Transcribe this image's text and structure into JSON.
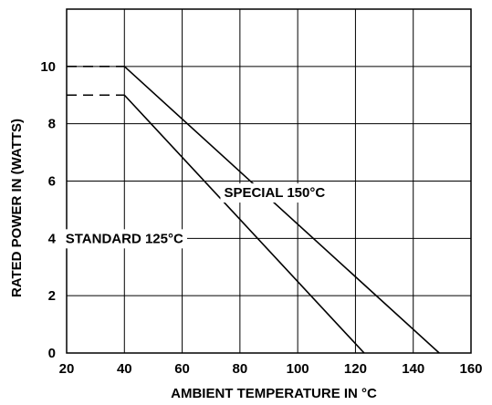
{
  "chart_data": {
    "type": "line",
    "title": "",
    "xlabel": "AMBIENT TEMPERATURE IN °C",
    "ylabel": "RATED POWER IN (WATTS)",
    "xlim": [
      20,
      160
    ],
    "ylim": [
      0,
      12
    ],
    "x_ticks": [
      20,
      40,
      60,
      80,
      100,
      120,
      140,
      160
    ],
    "y_ticks": [
      0,
      2,
      4,
      6,
      8,
      10
    ],
    "grid": true,
    "legend": "none",
    "series": [
      {
        "name": "STANDARD 125°C",
        "x": [
          20,
          40,
          123
        ],
        "y": [
          9,
          9,
          0
        ],
        "dashed_segment": [
          0,
          1
        ]
      },
      {
        "name": "SPECIAL 150°C",
        "x": [
          20,
          40,
          149
        ],
        "y": [
          10,
          10,
          0
        ],
        "dashed_segment": [
          0,
          1
        ]
      }
    ],
    "annotations": [
      {
        "text": "STANDARD 125°C",
        "series": 0,
        "x": 40,
        "y": 4
      },
      {
        "text": "SPECIAL 150°C",
        "series": 1,
        "x": 92,
        "y": 5.6
      }
    ]
  }
}
